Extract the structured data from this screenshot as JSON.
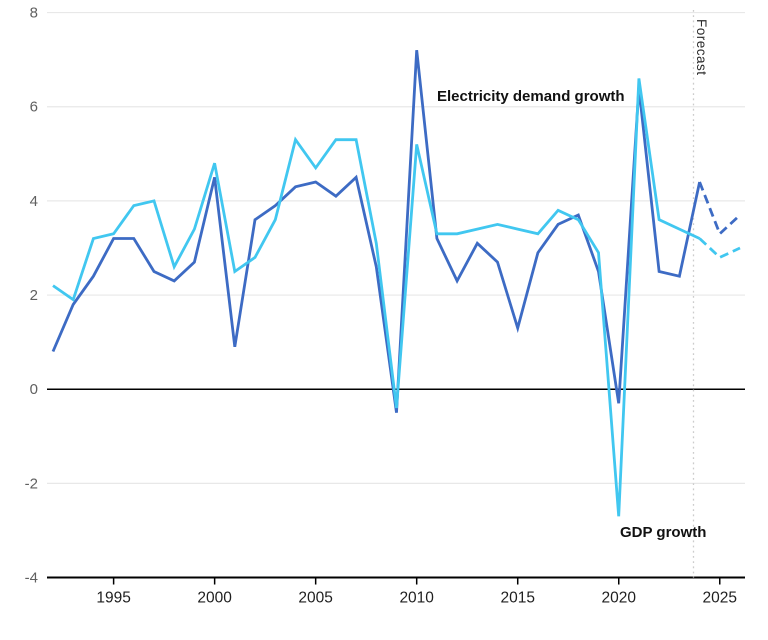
{
  "chart_data": {
    "type": "line",
    "title": "",
    "xlabel": "",
    "ylabel": "",
    "x": [
      1992,
      1993,
      1994,
      1995,
      1996,
      1997,
      1998,
      1999,
      2000,
      2001,
      2002,
      2003,
      2004,
      2005,
      2006,
      2007,
      2008,
      2009,
      2010,
      2011,
      2012,
      2013,
      2014,
      2015,
      2016,
      2017,
      2018,
      2019,
      2020,
      2021,
      2022,
      2023,
      2024,
      2025,
      2026
    ],
    "series": [
      {
        "name": "Electricity demand growth",
        "color": "#3d6bc4",
        "forecast_from": 2024,
        "values": [
          0.8,
          1.8,
          2.4,
          3.2,
          3.2,
          2.5,
          2.3,
          2.7,
          4.5,
          0.9,
          3.6,
          3.9,
          4.3,
          4.4,
          4.1,
          4.5,
          2.6,
          -0.5,
          7.2,
          3.2,
          2.3,
          3.1,
          2.7,
          1.3,
          2.9,
          3.5,
          3.7,
          2.5,
          -0.3,
          6.4,
          2.5,
          2.4,
          4.4,
          3.3,
          3.7
        ]
      },
      {
        "name": "GDP growth",
        "color": "#41c7f0",
        "forecast_from": 2024,
        "values": [
          2.2,
          1.9,
          3.2,
          3.3,
          3.9,
          4.0,
          2.6,
          3.4,
          4.8,
          2.5,
          2.8,
          3.6,
          5.3,
          4.7,
          5.3,
          5.3,
          3.1,
          -0.4,
          5.2,
          3.3,
          3.3,
          3.4,
          3.5,
          3.4,
          3.3,
          3.8,
          3.6,
          2.9,
          -2.7,
          6.6,
          3.6,
          3.4,
          3.2,
          2.8,
          3.0
        ]
      }
    ],
    "y_ticks": [
      8,
      6,
      4,
      2,
      0,
      -2,
      -4
    ],
    "x_ticks": [
      1995,
      2000,
      2005,
      2010,
      2015,
      2020,
      2025
    ],
    "ylim": [
      -4,
      8
    ],
    "xlim": [
      1992,
      2026
    ],
    "grid": true,
    "legend_position": "inline-annotations",
    "forecast_boundary": 2023.7,
    "annotations": {
      "electricity_label": "Electricity demand growth",
      "gdp_label": "GDP growth",
      "forecast_label": "Forecast"
    },
    "colors": {
      "electricity_line": "#3d6bc4",
      "gdp_line": "#41c7f0",
      "gridline": "#e8e8e8",
      "zero_line": "#000000",
      "axis_line": "#000000",
      "y_tick_label": "#606060",
      "x_tick_label": "#1f1f1f",
      "forecast_divider": "#cccccc",
      "background": "#ffffff"
    }
  }
}
